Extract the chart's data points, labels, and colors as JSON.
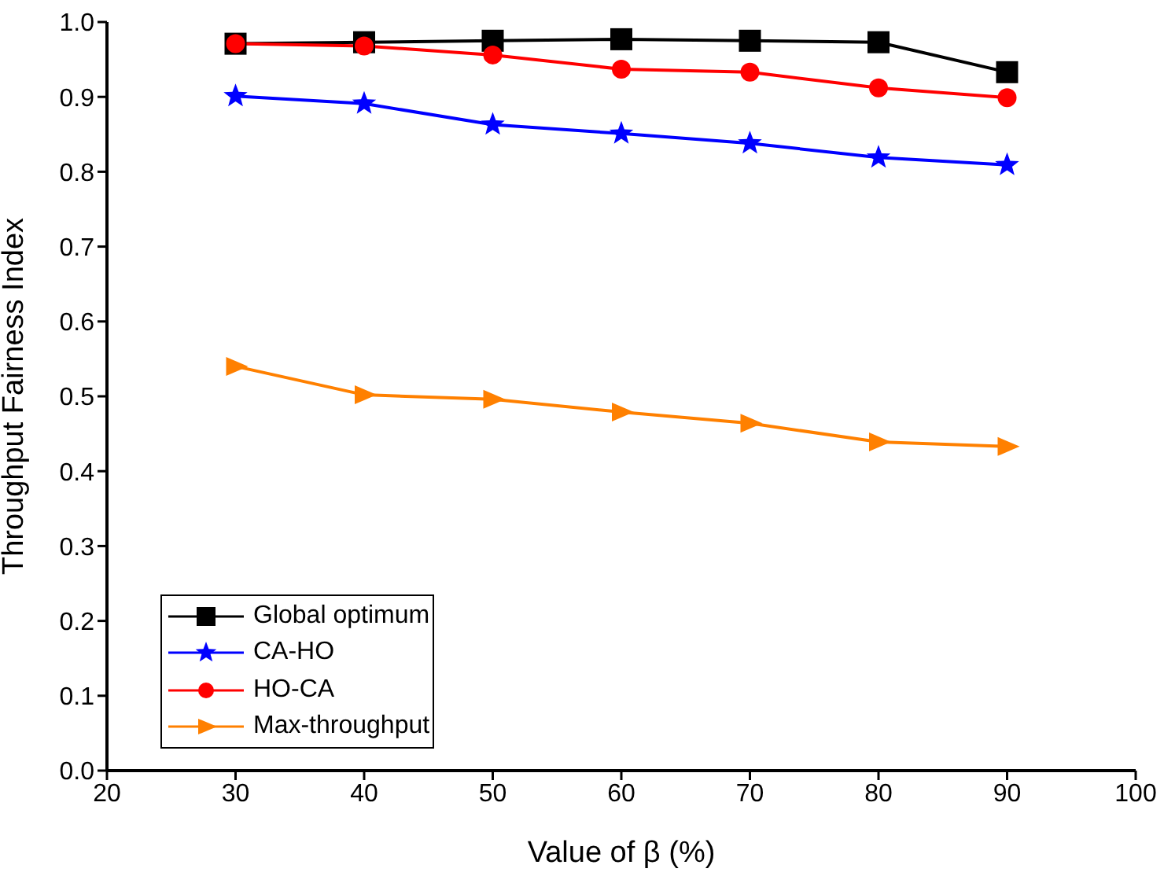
{
  "chart_data": {
    "type": "line",
    "xlabel": "Value of β (%)",
    "ylabel": "Throughput Fairness Index",
    "x": [
      30,
      40,
      50,
      60,
      70,
      80,
      90
    ],
    "series": [
      {
        "name": "Global optimum",
        "color": "#000000",
        "marker": "square",
        "values": [
          0.971,
          0.973,
          0.975,
          0.977,
          0.975,
          0.973,
          0.933
        ]
      },
      {
        "name": "CA-HO",
        "color": "#0000ff",
        "marker": "star",
        "values": [
          0.901,
          0.891,
          0.863,
          0.851,
          0.838,
          0.819,
          0.809
        ]
      },
      {
        "name": "HO-CA",
        "color": "#ff0000",
        "marker": "circle",
        "values": [
          0.971,
          0.968,
          0.956,
          0.937,
          0.933,
          0.912,
          0.899
        ]
      },
      {
        "name": "Max-throughput",
        "color": "#ff8000",
        "marker": "triangle",
        "values": [
          0.54,
          0.502,
          0.496,
          0.479,
          0.464,
          0.439,
          0.433
        ]
      }
    ],
    "xlim": [
      20,
      100
    ],
    "xticks": [
      20,
      30,
      40,
      50,
      60,
      70,
      80,
      90,
      100
    ],
    "ylim": [
      0,
      1.0
    ],
    "yticks": [
      {
        "value": 0,
        "label": "0.0"
      },
      0.1,
      0.2,
      0.3,
      0.4,
      0.5,
      0.6,
      0.7,
      0.8,
      0.9,
      {
        "value": 1.0,
        "label": "1.0"
      }
    ],
    "grid": false,
    "legend": "bottom left"
  }
}
